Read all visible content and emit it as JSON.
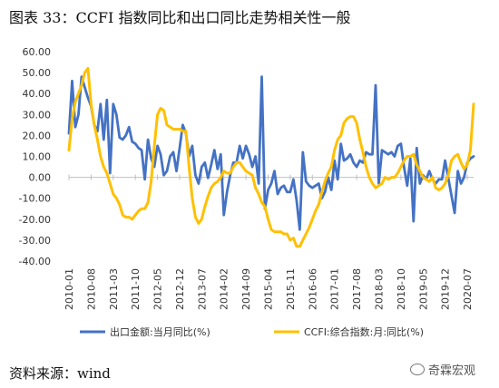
{
  "title": "图表 33：CCFI 指数同比和出口同比走势相关性一般",
  "source": "资料来源：wind",
  "watermark": {
    "text": "奇霖宏观",
    "icon": "wechat-icon"
  },
  "chart_data": {
    "type": "line",
    "ylim": [
      -40,
      60
    ],
    "yticks": [
      "60.00",
      "50.00",
      "40.00",
      "30.00",
      "20.00",
      "10.00",
      "0.00",
      "-10.00",
      "-20.00",
      "-30.00",
      "-40.00"
    ],
    "xticks": [
      "2010-01",
      "2010-08",
      "2011-03",
      "2011-10",
      "2012-05",
      "2012-12",
      "2013-07",
      "2014-02",
      "2014-09",
      "2015-04",
      "2015-11",
      "2016-06",
      "2017-01",
      "2017-08",
      "2018-03",
      "2018-10",
      "2019-05",
      "2019-12",
      "2020-07"
    ],
    "legend_position": "bottom",
    "grid": false,
    "series": [
      {
        "name": "出口金额:当月同比(%)",
        "color": "#4472C4",
        "points": [
          [
            "2010-01",
            21
          ],
          [
            "2010-02",
            46
          ],
          [
            "2010-03",
            24
          ],
          [
            "2010-04",
            30
          ],
          [
            "2010-05",
            48
          ],
          [
            "2010-06",
            43
          ],
          [
            "2010-07",
            38
          ],
          [
            "2010-08",
            34
          ],
          [
            "2010-09",
            25
          ],
          [
            "2010-10",
            22
          ],
          [
            "2010-11",
            35
          ],
          [
            "2010-12",
            18
          ],
          [
            "2011-01",
            37
          ],
          [
            "2011-02",
            2
          ],
          [
            "2011-03",
            35
          ],
          [
            "2011-04",
            30
          ],
          [
            "2011-05",
            19
          ],
          [
            "2011-06",
            18
          ],
          [
            "2011-07",
            20
          ],
          [
            "2011-08",
            24
          ],
          [
            "2011-09",
            17
          ],
          [
            "2011-10",
            16
          ],
          [
            "2011-11",
            14
          ],
          [
            "2011-12",
            13
          ],
          [
            "2012-01",
            -1
          ],
          [
            "2012-02",
            18
          ],
          [
            "2012-03",
            9
          ],
          [
            "2012-04",
            5
          ],
          [
            "2012-05",
            15
          ],
          [
            "2012-06",
            11
          ],
          [
            "2012-07",
            1
          ],
          [
            "2012-08",
            3
          ],
          [
            "2012-09",
            10
          ],
          [
            "2012-10",
            12
          ],
          [
            "2012-11",
            3
          ],
          [
            "2012-12",
            14
          ],
          [
            "2013-01",
            25
          ],
          [
            "2013-02",
            21
          ],
          [
            "2013-03",
            10
          ],
          [
            "2013-04",
            15
          ],
          [
            "2013-05",
            1
          ],
          [
            "2013-06",
            -3
          ],
          [
            "2013-07",
            5
          ],
          [
            "2013-08",
            7
          ],
          [
            "2013-09",
            -0.3
          ],
          [
            "2013-10",
            6
          ],
          [
            "2013-11",
            13
          ],
          [
            "2013-12",
            4
          ],
          [
            "2014-01",
            11
          ],
          [
            "2014-02",
            -18
          ],
          [
            "2014-03",
            -7
          ],
          [
            "2014-04",
            1
          ],
          [
            "2014-05",
            7
          ],
          [
            "2014-06",
            7
          ],
          [
            "2014-07",
            15
          ],
          [
            "2014-08",
            9
          ],
          [
            "2014-09",
            15
          ],
          [
            "2014-10",
            11
          ],
          [
            "2014-11",
            5
          ],
          [
            "2014-12",
            10
          ],
          [
            "2015-01",
            -3
          ],
          [
            "2015-02",
            48
          ],
          [
            "2015-03",
            -15
          ],
          [
            "2015-04",
            -6
          ],
          [
            "2015-05",
            -3
          ],
          [
            "2015-06",
            3
          ],
          [
            "2015-07",
            -8
          ],
          [
            "2015-08",
            -5
          ],
          [
            "2015-09",
            -4
          ],
          [
            "2015-10",
            -7
          ],
          [
            "2015-11",
            -7
          ],
          [
            "2015-12",
            -1
          ],
          [
            "2016-01",
            -11
          ],
          [
            "2016-02",
            -25
          ],
          [
            "2016-03",
            12
          ],
          [
            "2016-04",
            -2
          ],
          [
            "2016-05",
            -4
          ],
          [
            "2016-06",
            -5
          ],
          [
            "2016-07",
            -4
          ],
          [
            "2016-08",
            -3
          ],
          [
            "2016-09",
            -10
          ],
          [
            "2016-10",
            -7
          ],
          [
            "2016-11",
            0
          ],
          [
            "2016-12",
            -6
          ],
          [
            "2017-01",
            8
          ],
          [
            "2017-02",
            -1
          ],
          [
            "2017-03",
            16
          ],
          [
            "2017-04",
            8
          ],
          [
            "2017-05",
            9
          ],
          [
            "2017-06",
            11
          ],
          [
            "2017-07",
            7
          ],
          [
            "2017-08",
            5
          ],
          [
            "2017-09",
            8
          ],
          [
            "2017-10",
            7
          ],
          [
            "2017-11",
            12
          ],
          [
            "2017-12",
            11
          ],
          [
            "2018-01",
            11
          ],
          [
            "2018-02",
            44
          ],
          [
            "2018-03",
            -3
          ],
          [
            "2018-04",
            13
          ],
          [
            "2018-05",
            12
          ],
          [
            "2018-06",
            11
          ],
          [
            "2018-07",
            12
          ],
          [
            "2018-08",
            10
          ],
          [
            "2018-09",
            15
          ],
          [
            "2018-10",
            16
          ],
          [
            "2018-11",
            5
          ],
          [
            "2018-12",
            -4
          ],
          [
            "2019-01",
            9
          ],
          [
            "2019-02",
            -21
          ],
          [
            "2019-03",
            14
          ],
          [
            "2019-04",
            -3
          ],
          [
            "2019-05",
            1
          ],
          [
            "2019-06",
            -1
          ],
          [
            "2019-07",
            3
          ],
          [
            "2019-08",
            -1
          ],
          [
            "2019-09",
            -3
          ],
          [
            "2019-10",
            -1
          ],
          [
            "2019-11",
            -1
          ],
          [
            "2019-12",
            8
          ],
          [
            "2020-03",
            -17
          ],
          [
            "2020-04",
            3
          ],
          [
            "2020-05",
            -3
          ],
          [
            "2020-06",
            0
          ],
          [
            "2020-07",
            7
          ],
          [
            "2020-08",
            9
          ],
          [
            "2020-09",
            10
          ]
        ]
      },
      {
        "name": "CCFI:综合指数:月:同比(%)",
        "color": "#FFC000",
        "points": [
          [
            "2010-01",
            13
          ],
          [
            "2010-02",
            28
          ],
          [
            "2010-03",
            36
          ],
          [
            "2010-04",
            40
          ],
          [
            "2010-05",
            44
          ],
          [
            "2010-06",
            50
          ],
          [
            "2010-07",
            52
          ],
          [
            "2010-08",
            35
          ],
          [
            "2010-09",
            25
          ],
          [
            "2010-10",
            18
          ],
          [
            "2010-11",
            10
          ],
          [
            "2010-12",
            5
          ],
          [
            "2011-01",
            2
          ],
          [
            "2011-02",
            -3
          ],
          [
            "2011-03",
            -8
          ],
          [
            "2011-04",
            -10
          ],
          [
            "2011-05",
            -13
          ],
          [
            "2011-06",
            -18
          ],
          [
            "2011-07",
            -19
          ],
          [
            "2011-08",
            -19
          ],
          [
            "2011-09",
            -20
          ],
          [
            "2011-10",
            -18
          ],
          [
            "2011-11",
            -16
          ],
          [
            "2011-12",
            -15
          ],
          [
            "2012-01",
            -15
          ],
          [
            "2012-02",
            -12
          ],
          [
            "2012-03",
            -2
          ],
          [
            "2012-04",
            15
          ],
          [
            "2012-05",
            30
          ],
          [
            "2012-06",
            33
          ],
          [
            "2012-07",
            32
          ],
          [
            "2012-08",
            25
          ],
          [
            "2012-09",
            24
          ],
          [
            "2012-10",
            23
          ],
          [
            "2012-11",
            23
          ],
          [
            "2012-12",
            23
          ],
          [
            "2013-01",
            22
          ],
          [
            "2013-02",
            22
          ],
          [
            "2013-03",
            5
          ],
          [
            "2013-04",
            -10
          ],
          [
            "2013-05",
            -19
          ],
          [
            "2013-06",
            -22
          ],
          [
            "2013-07",
            -20
          ],
          [
            "2013-08",
            -14
          ],
          [
            "2013-09",
            -9
          ],
          [
            "2013-10",
            -5
          ],
          [
            "2013-11",
            -3
          ],
          [
            "2013-12",
            -2
          ],
          [
            "2014-01",
            0
          ],
          [
            "2014-02",
            3
          ],
          [
            "2014-03",
            2
          ],
          [
            "2014-04",
            2
          ],
          [
            "2014-05",
            5
          ],
          [
            "2014-06",
            7
          ],
          [
            "2014-07",
            7
          ],
          [
            "2014-08",
            5
          ],
          [
            "2014-09",
            3
          ],
          [
            "2014-10",
            2
          ],
          [
            "2014-11",
            1
          ],
          [
            "2014-12",
            -5
          ],
          [
            "2015-01",
            -8
          ],
          [
            "2015-02",
            -12
          ],
          [
            "2015-03",
            -14
          ],
          [
            "2015-04",
            -20
          ],
          [
            "2015-05",
            -25
          ],
          [
            "2015-06",
            -26
          ],
          [
            "2015-07",
            -26
          ],
          [
            "2015-08",
            -26
          ],
          [
            "2015-09",
            -27
          ],
          [
            "2015-10",
            -27
          ],
          [
            "2015-11",
            -30
          ],
          [
            "2015-12",
            -29
          ],
          [
            "2016-01",
            -33
          ],
          [
            "2016-02",
            -33
          ],
          [
            "2016-03",
            -30
          ],
          [
            "2016-04",
            -27
          ],
          [
            "2016-05",
            -24
          ],
          [
            "2016-06",
            -20
          ],
          [
            "2016-07",
            -16
          ],
          [
            "2016-08",
            -13
          ],
          [
            "2016-09",
            -7
          ],
          [
            "2016-10",
            -2
          ],
          [
            "2016-11",
            2
          ],
          [
            "2016-12",
            5
          ],
          [
            "2017-01",
            13
          ],
          [
            "2017-02",
            18
          ],
          [
            "2017-03",
            20
          ],
          [
            "2017-04",
            26
          ],
          [
            "2017-05",
            28
          ],
          [
            "2017-06",
            29
          ],
          [
            "2017-07",
            29
          ],
          [
            "2017-08",
            26
          ],
          [
            "2017-09",
            18
          ],
          [
            "2017-10",
            12
          ],
          [
            "2017-11",
            5
          ],
          [
            "2017-12",
            0
          ],
          [
            "2018-01",
            -3
          ],
          [
            "2018-02",
            -5
          ],
          [
            "2018-03",
            -4
          ],
          [
            "2018-04",
            -3
          ],
          [
            "2018-05",
            0
          ],
          [
            "2018-06",
            -1
          ],
          [
            "2018-07",
            0
          ],
          [
            "2018-08",
            0
          ],
          [
            "2018-09",
            2
          ],
          [
            "2018-10",
            5
          ],
          [
            "2018-11",
            8
          ],
          [
            "2018-12",
            10
          ],
          [
            "2019-01",
            10
          ],
          [
            "2019-02",
            11
          ],
          [
            "2019-03",
            6
          ],
          [
            "2019-04",
            3
          ],
          [
            "2019-05",
            0
          ],
          [
            "2019-06",
            -1
          ],
          [
            "2019-07",
            -2
          ],
          [
            "2019-08",
            0
          ],
          [
            "2019-09",
            -5
          ],
          [
            "2019-10",
            -6
          ],
          [
            "2019-11",
            -5
          ],
          [
            "2019-12",
            -3
          ],
          [
            "2020-01",
            1
          ],
          [
            "2020-02",
            8
          ],
          [
            "2020-03",
            10
          ],
          [
            "2020-04",
            11
          ],
          [
            "2020-05",
            7
          ],
          [
            "2020-06",
            4
          ],
          [
            "2020-07",
            6
          ],
          [
            "2020-08",
            13
          ],
          [
            "2020-09",
            35
          ]
        ]
      }
    ]
  }
}
